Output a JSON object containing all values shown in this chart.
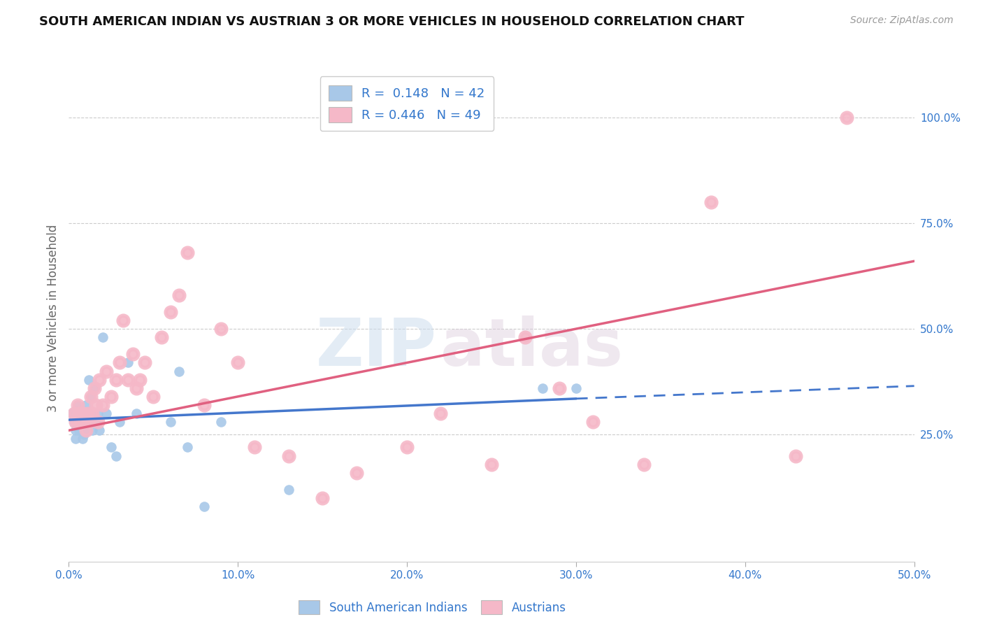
{
  "title": "SOUTH AMERICAN INDIAN VS AUSTRIAN 3 OR MORE VEHICLES IN HOUSEHOLD CORRELATION CHART",
  "source": "Source: ZipAtlas.com",
  "ylabel": "3 or more Vehicles in Household",
  "xlim": [
    0.0,
    0.5
  ],
  "ylim": [
    -0.05,
    1.1
  ],
  "ytick_labels": [
    "25.0%",
    "50.0%",
    "75.0%",
    "100.0%"
  ],
  "yticks": [
    0.25,
    0.5,
    0.75,
    1.0
  ],
  "xtick_positions": [
    0.0,
    0.1,
    0.2,
    0.3,
    0.4,
    0.5
  ],
  "xtick_labels": [
    "0.0%",
    "10.0%",
    "20.0%",
    "30.0%",
    "40.0%",
    "50.0%"
  ],
  "r_blue": 0.148,
  "n_blue": 42,
  "r_pink": 0.446,
  "n_pink": 49,
  "blue_color": "#a8c8e8",
  "pink_color": "#f5b8c8",
  "blue_line_color": "#4477cc",
  "pink_line_color": "#e06080",
  "watermark_zip": "ZIP",
  "watermark_atlas": "atlas",
  "blue_scatter_x": [
    0.002,
    0.003,
    0.004,
    0.004,
    0.005,
    0.005,
    0.006,
    0.006,
    0.007,
    0.007,
    0.008,
    0.008,
    0.009,
    0.009,
    0.01,
    0.01,
    0.01,
    0.011,
    0.011,
    0.012,
    0.012,
    0.013,
    0.014,
    0.015,
    0.016,
    0.017,
    0.018,
    0.02,
    0.022,
    0.025,
    0.028,
    0.03,
    0.035,
    0.04,
    0.06,
    0.065,
    0.07,
    0.08,
    0.09,
    0.13,
    0.28,
    0.3
  ],
  "blue_scatter_y": [
    0.3,
    0.28,
    0.26,
    0.24,
    0.32,
    0.3,
    0.28,
    0.26,
    0.3,
    0.28,
    0.26,
    0.24,
    0.27,
    0.25,
    0.32,
    0.3,
    0.28,
    0.26,
    0.28,
    0.3,
    0.38,
    0.34,
    0.26,
    0.36,
    0.28,
    0.3,
    0.26,
    0.48,
    0.3,
    0.22,
    0.2,
    0.28,
    0.42,
    0.3,
    0.28,
    0.4,
    0.22,
    0.08,
    0.28,
    0.12,
    0.36,
    0.36
  ],
  "pink_scatter_x": [
    0.003,
    0.004,
    0.005,
    0.006,
    0.007,
    0.008,
    0.009,
    0.01,
    0.011,
    0.012,
    0.013,
    0.014,
    0.015,
    0.016,
    0.017,
    0.018,
    0.02,
    0.022,
    0.025,
    0.028,
    0.03,
    0.032,
    0.035,
    0.038,
    0.04,
    0.042,
    0.045,
    0.05,
    0.055,
    0.06,
    0.065,
    0.07,
    0.08,
    0.09,
    0.1,
    0.11,
    0.13,
    0.15,
    0.17,
    0.2,
    0.22,
    0.25,
    0.27,
    0.29,
    0.31,
    0.34,
    0.38,
    0.43,
    0.46
  ],
  "pink_scatter_y": [
    0.3,
    0.28,
    0.32,
    0.3,
    0.28,
    0.3,
    0.28,
    0.26,
    0.3,
    0.28,
    0.34,
    0.3,
    0.36,
    0.32,
    0.28,
    0.38,
    0.32,
    0.4,
    0.34,
    0.38,
    0.42,
    0.52,
    0.38,
    0.44,
    0.36,
    0.38,
    0.42,
    0.34,
    0.48,
    0.54,
    0.58,
    0.68,
    0.32,
    0.5,
    0.42,
    0.22,
    0.2,
    0.1,
    0.16,
    0.22,
    0.3,
    0.18,
    0.48,
    0.36,
    0.28,
    0.18,
    0.8,
    0.2,
    1.0
  ],
  "blue_line_x0": 0.0,
  "blue_line_x_solid_end": 0.3,
  "blue_line_x1": 0.5,
  "blue_line_y0": 0.285,
  "blue_line_y_solid_end": 0.335,
  "blue_line_y1": 0.365,
  "pink_line_x0": 0.0,
  "pink_line_x1": 0.5,
  "pink_line_y0": 0.26,
  "pink_line_y1": 0.66
}
